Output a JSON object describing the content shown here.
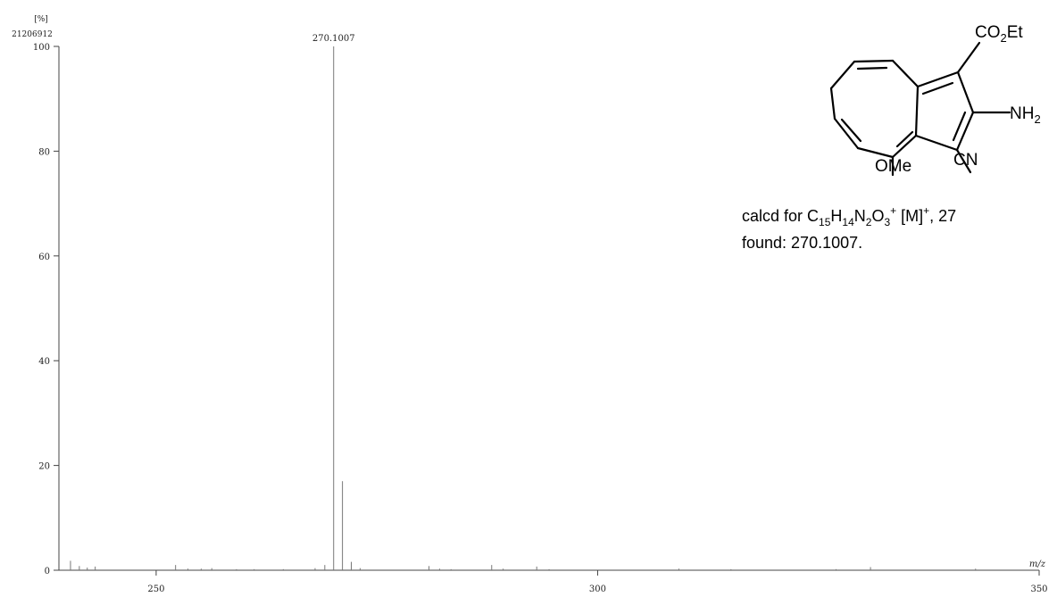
{
  "chart_data": {
    "type": "bar",
    "y_unit_label": "[%]",
    "y_full_scale_count": "21206912",
    "xlabel": "m/z",
    "ylabel": "",
    "xlim": [
      240,
      350
    ],
    "ylim": [
      0,
      100
    ],
    "x_ticks": [
      250,
      300,
      350
    ],
    "y_ticks": [
      0,
      20,
      40,
      60,
      80,
      100
    ],
    "grid": false,
    "peak_label": "270.1007",
    "peaks": [
      {
        "x": 240.3,
        "y": 1.8
      },
      {
        "x": 241.3,
        "y": 0.8
      },
      {
        "x": 242.2,
        "y": 0.5
      },
      {
        "x": 243.1,
        "y": 0.7
      },
      {
        "x": 252.2,
        "y": 1.0
      },
      {
        "x": 253.6,
        "y": 0.3
      },
      {
        "x": 255.1,
        "y": 0.3
      },
      {
        "x": 256.3,
        "y": 0.4
      },
      {
        "x": 259.1,
        "y": 0.2
      },
      {
        "x": 261.1,
        "y": 0.2
      },
      {
        "x": 264.4,
        "y": 0.2
      },
      {
        "x": 268.0,
        "y": 0.4
      },
      {
        "x": 269.1,
        "y": 1.0
      },
      {
        "x": 270.1007,
        "y": 100
      },
      {
        "x": 271.1,
        "y": 17.0
      },
      {
        "x": 272.1,
        "y": 1.6
      },
      {
        "x": 273.1,
        "y": 0.4
      },
      {
        "x": 280.9,
        "y": 0.8
      },
      {
        "x": 282.1,
        "y": 0.3
      },
      {
        "x": 283.4,
        "y": 0.2
      },
      {
        "x": 288.0,
        "y": 1.0
      },
      {
        "x": 289.3,
        "y": 0.3
      },
      {
        "x": 293.1,
        "y": 0.7
      },
      {
        "x": 294.5,
        "y": 0.2
      },
      {
        "x": 309.2,
        "y": 0.3
      },
      {
        "x": 315.1,
        "y": 0.2
      },
      {
        "x": 327.0,
        "y": 0.2
      },
      {
        "x": 330.9,
        "y": 0.6
      },
      {
        "x": 342.8,
        "y": 0.3
      }
    ]
  },
  "structure": {
    "labels": {
      "ester": "CO",
      "ester_sub": "2",
      "ester_tail": "Et",
      "amine": "NH",
      "amine_sub": "2",
      "nitrile": "CN",
      "methoxy": "OMe"
    }
  },
  "annotation": {
    "calcd_prefix": "calcd for C",
    "c_count": "15",
    "h": "H",
    "h_count": "14",
    "n": "N",
    "n_count": "2",
    "o": "O",
    "o_count": "3",
    "charge": "+",
    "ion_open": " [M]",
    "ion_charge": "+",
    "calcd_tail": ", 27",
    "found": "found: 270.1007."
  }
}
